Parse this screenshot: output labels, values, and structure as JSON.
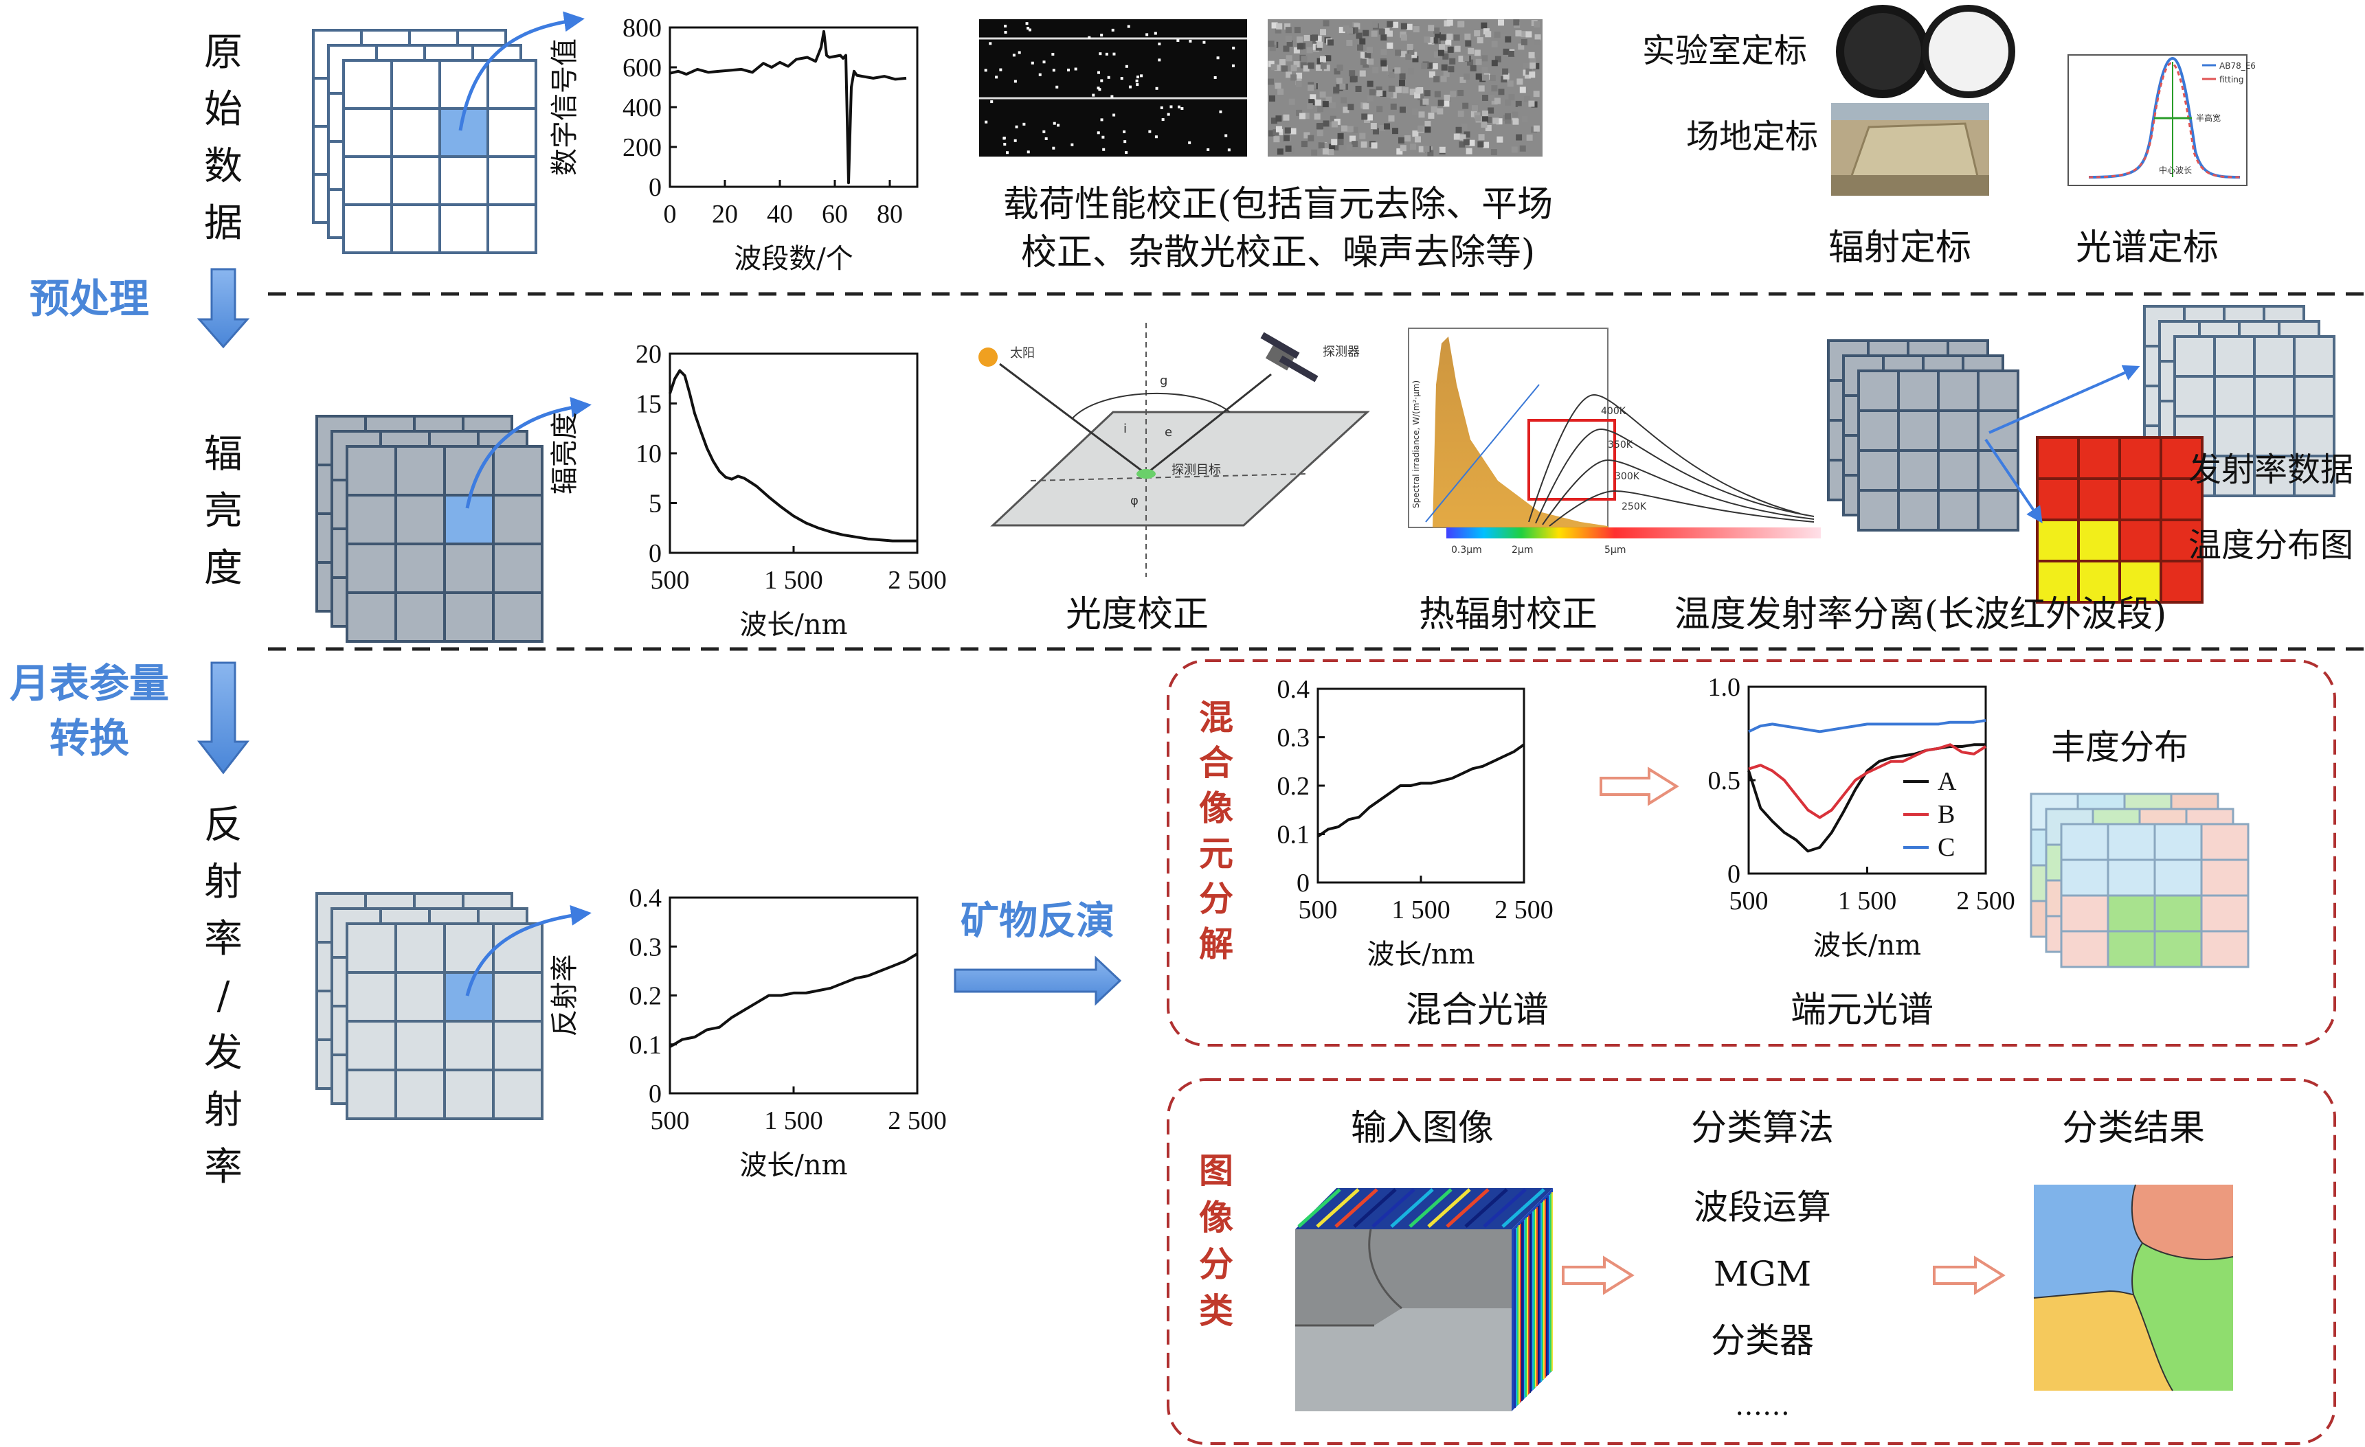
{
  "stages": {
    "preprocess": "预处理",
    "conversion": "月表参量转换"
  },
  "rows": {
    "raw": [
      "原",
      "始",
      "数",
      "据"
    ],
    "radiance": [
      "辐",
      "亮",
      "度"
    ],
    "reflect": [
      "反",
      "射",
      "率",
      "/",
      "发",
      "射",
      "率"
    ]
  },
  "labels": {
    "payload_line1": "载荷性能校正(包括盲元去除、平场",
    "payload_line2": "校正、杂散光校正、噪声去除等)",
    "lab_cal": "实验室定标",
    "field_cal": "场地定标",
    "rad_cal": "辐射定标",
    "spec_cal": "光谱定标",
    "photometric": "光度校正",
    "thermal": "热辐射校正",
    "te_sep": "温度发射率分离(长波红外波段)",
    "emissivity_data": "发射率数据",
    "temp_map": "温度分布图",
    "mineral_inversion": "矿物反演",
    "unmixing": [
      "混",
      "合",
      "像",
      "元",
      "分",
      "解"
    ],
    "mixed_spectrum": "混合光谱",
    "endmember_spectrum": "端元光谱",
    "abundance": "丰度分布",
    "classification": [
      "图",
      "像",
      "分",
      "类"
    ],
    "input_image": "输入图像",
    "algorithm": "分类算法",
    "result": "分类结果",
    "alg_items": [
      "波段运算",
      "MGM",
      "分类器",
      "……"
    ],
    "sun": "太阳",
    "detector": "探测器",
    "target": "探测目标",
    "geom_i": "i",
    "geom_e": "e",
    "geom_g": "g",
    "geom_phi": "φ",
    "thermal_ylabel": "Spectral irradiance, W/(m²·μm)",
    "thermal_bar": [
      "0.3μm",
      "2μm",
      "5μm"
    ],
    "thermal_curves": [
      "400K",
      "350K",
      "300K",
      "250K"
    ],
    "spec_cal_legend": [
      "AB78_E6",
      "fitting"
    ],
    "spec_cal_fwhm": "半高宽",
    "spec_cal_center": "中心波长"
  },
  "chart_data": [
    {
      "type": "line",
      "name": "raw-dn",
      "xlabel": "波段数/个",
      "ylabel": "数字信号值",
      "xlim": [
        0,
        90
      ],
      "ylim": [
        0,
        800
      ],
      "xticks": [
        "0",
        "20",
        "40",
        "60",
        "80"
      ],
      "yticks": [
        "0",
        "200",
        "400",
        "600",
        "800"
      ],
      "x": [
        0,
        3,
        6,
        10,
        14,
        18,
        22,
        26,
        30,
        34,
        37,
        40,
        43,
        46,
        50,
        53,
        55,
        56,
        57,
        58,
        60,
        62,
        63,
        64,
        65,
        66,
        67,
        68,
        70,
        74,
        78,
        82,
        86
      ],
      "y": [
        570,
        580,
        565,
        590,
        575,
        580,
        585,
        590,
        575,
        620,
        600,
        625,
        605,
        640,
        650,
        630,
        700,
        780,
        660,
        650,
        655,
        660,
        645,
        660,
        20,
        500,
        580,
        560,
        555,
        545,
        555,
        540,
        545
      ]
    },
    {
      "type": "line",
      "name": "radiance",
      "xlabel": "波长/nm",
      "ylabel": "辐亮度",
      "xlim": [
        500,
        2500
      ],
      "ylim": [
        0,
        20
      ],
      "xticks": [
        "500",
        "1 500",
        "2 500"
      ],
      "yticks": [
        "0",
        "5",
        "10",
        "15",
        "20"
      ],
      "x": [
        500,
        540,
        580,
        620,
        660,
        700,
        750,
        800,
        850,
        900,
        950,
        1000,
        1050,
        1100,
        1150,
        1200,
        1300,
        1400,
        1500,
        1600,
        1700,
        1800,
        1900,
        2000,
        2100,
        2200,
        2300,
        2400,
        2500
      ],
      "y": [
        16,
        17.5,
        18.3,
        17.8,
        16.0,
        14.0,
        12.2,
        10.5,
        9.2,
        8.2,
        7.6,
        7.4,
        7.7,
        7.5,
        7.1,
        6.7,
        5.6,
        4.6,
        3.7,
        3.0,
        2.5,
        2.1,
        1.8,
        1.6,
        1.4,
        1.3,
        1.2,
        1.2,
        1.2
      ]
    },
    {
      "type": "line",
      "name": "reflectance",
      "xlabel": "波长/nm",
      "ylabel": "反射率",
      "xlim": [
        500,
        2500
      ],
      "ylim": [
        0,
        0.4
      ],
      "xticks": [
        "500",
        "1 500",
        "2 500"
      ],
      "yticks": [
        "0",
        "0.1",
        "0.2",
        "0.3",
        "0.4"
      ],
      "x": [
        500,
        600,
        700,
        800,
        900,
        1000,
        1100,
        1200,
        1300,
        1400,
        1500,
        1600,
        1700,
        1800,
        1900,
        2000,
        2100,
        2200,
        2300,
        2400,
        2500
      ],
      "y": [
        0.095,
        0.11,
        0.115,
        0.13,
        0.135,
        0.155,
        0.17,
        0.185,
        0.2,
        0.2,
        0.205,
        0.205,
        0.21,
        0.215,
        0.225,
        0.235,
        0.24,
        0.25,
        0.26,
        0.27,
        0.285
      ]
    },
    {
      "type": "line",
      "name": "mixed",
      "xlabel": "波长/nm",
      "ylabel": "",
      "xlim": [
        500,
        2500
      ],
      "ylim": [
        0,
        0.4
      ],
      "xticks": [
        "500",
        "1 500",
        "2 500"
      ],
      "yticks": [
        "0",
        "0.1",
        "0.2",
        "0.3",
        "0.4"
      ],
      "x": [
        500,
        600,
        700,
        800,
        900,
        1000,
        1100,
        1200,
        1300,
        1400,
        1500,
        1600,
        1700,
        1800,
        1900,
        2000,
        2100,
        2200,
        2300,
        2400,
        2500
      ],
      "y": [
        0.095,
        0.11,
        0.115,
        0.13,
        0.135,
        0.155,
        0.17,
        0.185,
        0.2,
        0.2,
        0.205,
        0.205,
        0.21,
        0.215,
        0.225,
        0.235,
        0.24,
        0.25,
        0.26,
        0.27,
        0.285
      ]
    },
    {
      "type": "line",
      "name": "endmembers",
      "xlabel": "波长/nm",
      "ylabel": "",
      "xlim": [
        500,
        2500
      ],
      "ylim": [
        0,
        1.0
      ],
      "xticks": [
        "500",
        "1 500",
        "2 500"
      ],
      "yticks": [
        "0",
        "0.5",
        "1.0"
      ],
      "x": [
        500,
        600,
        700,
        800,
        900,
        1000,
        1100,
        1200,
        1300,
        1400,
        1500,
        1600,
        1700,
        1800,
        1900,
        2000,
        2100,
        2200,
        2300,
        2400,
        2500
      ],
      "series": [
        {
          "name": "A",
          "color": "#111111",
          "values": [
            0.55,
            0.35,
            0.28,
            0.22,
            0.18,
            0.12,
            0.14,
            0.22,
            0.33,
            0.45,
            0.55,
            0.6,
            0.62,
            0.63,
            0.64,
            0.66,
            0.67,
            0.68,
            0.68,
            0.69,
            0.69
          ]
        },
        {
          "name": "B",
          "color": "#d9323a",
          "values": [
            0.56,
            0.58,
            0.55,
            0.5,
            0.42,
            0.34,
            0.3,
            0.34,
            0.42,
            0.5,
            0.54,
            0.57,
            0.6,
            0.6,
            0.63,
            0.66,
            0.67,
            0.69,
            0.65,
            0.64,
            0.68
          ]
        },
        {
          "name": "C",
          "color": "#3a78d6",
          "values": [
            0.76,
            0.79,
            0.8,
            0.79,
            0.78,
            0.77,
            0.76,
            0.77,
            0.78,
            0.79,
            0.8,
            0.8,
            0.8,
            0.8,
            0.8,
            0.8,
            0.8,
            0.81,
            0.81,
            0.81,
            0.82
          ]
        }
      ]
    }
  ],
  "colors": {
    "accent_blue": "#4a86d8",
    "accent_red": "#c0392b",
    "cube_white_border": "#4a6a8f",
    "cube_gray": "#aab3bd",
    "cube_light": "#d9dfe3",
    "highlight": "#7fb0ea"
  }
}
